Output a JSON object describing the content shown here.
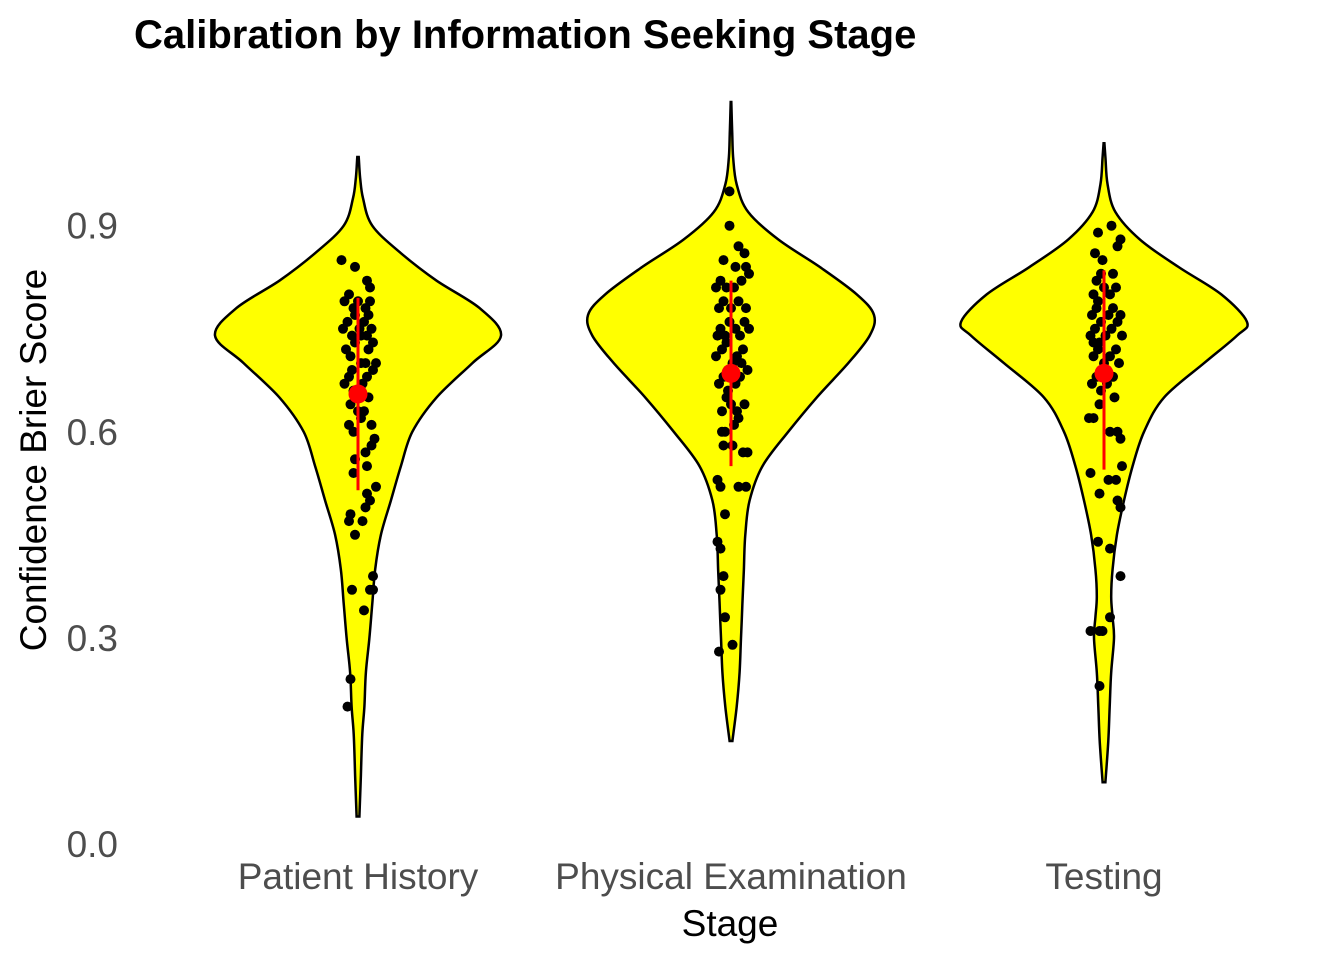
{
  "chart_data": {
    "type": "violin",
    "title": "Calibration by Information Seeking Stage",
    "xlabel": "Stage",
    "ylabel": "Confidence Brier Score",
    "ylim": [
      0,
      1.07
    ],
    "yticks": [
      0,
      0.3,
      0.6,
      0.9
    ],
    "ytick_labels": [
      "0.0",
      "0.3",
      "0.6",
      "0.9"
    ],
    "categories": [
      "Patient History",
      "Physical Examination",
      "Testing"
    ],
    "grid": false,
    "legend": "none",
    "colors": {
      "violin_fill": "#ffff00",
      "violin_outline": "#000000",
      "point": "#000000",
      "summary": "#ff0000"
    },
    "groups": [
      {
        "name": "Patient History",
        "mean": 0.655,
        "sd_range": [
          0.515,
          0.795
        ],
        "violin_range": [
          0.04,
          1.0
        ],
        "density": [
          [
            0.04,
            0.01
          ],
          [
            0.1,
            0.02
          ],
          [
            0.16,
            0.03
          ],
          [
            0.2,
            0.045
          ],
          [
            0.25,
            0.055
          ],
          [
            0.3,
            0.08
          ],
          [
            0.35,
            0.1
          ],
          [
            0.4,
            0.12
          ],
          [
            0.45,
            0.16
          ],
          [
            0.5,
            0.23
          ],
          [
            0.55,
            0.3
          ],
          [
            0.6,
            0.38
          ],
          [
            0.65,
            0.55
          ],
          [
            0.7,
            0.8
          ],
          [
            0.74,
            1.0
          ],
          [
            0.78,
            0.85
          ],
          [
            0.82,
            0.55
          ],
          [
            0.86,
            0.3
          ],
          [
            0.9,
            0.1
          ],
          [
            0.94,
            0.035
          ],
          [
            0.97,
            0.015
          ],
          [
            1.0,
            0.005
          ]
        ],
        "points": [
          [
            -0.07,
            0.2
          ],
          [
            -0.05,
            0.24
          ],
          [
            -0.04,
            0.37
          ],
          [
            0.04,
            0.34
          ],
          [
            0.08,
            0.37
          ],
          [
            0.1,
            0.39
          ],
          [
            0.1,
            0.37
          ],
          [
            -0.06,
            0.47
          ],
          [
            -0.05,
            0.48
          ],
          [
            -0.02,
            0.45
          ],
          [
            0.03,
            0.47
          ],
          [
            0.05,
            0.49
          ],
          [
            0.06,
            0.51
          ],
          [
            0.08,
            0.5
          ],
          [
            0.12,
            0.52
          ],
          [
            -0.03,
            0.54
          ],
          [
            -0.02,
            0.56
          ],
          [
            0.05,
            0.57
          ],
          [
            0.06,
            0.55
          ],
          [
            0.09,
            0.58
          ],
          [
            0.11,
            0.59
          ],
          [
            -0.06,
            0.61
          ],
          [
            -0.03,
            0.6
          ],
          [
            0.02,
            0.62
          ],
          [
            0.04,
            0.63
          ],
          [
            0.09,
            0.61
          ],
          [
            -0.09,
            0.67
          ],
          [
            -0.06,
            0.68
          ],
          [
            -0.03,
            0.66
          ],
          [
            -0.01,
            0.65
          ],
          [
            0.03,
            0.67
          ],
          [
            0.06,
            0.68
          ],
          [
            0.1,
            0.69
          ],
          [
            -0.08,
            0.72
          ],
          [
            -0.05,
            0.71
          ],
          [
            -0.02,
            0.73
          ],
          [
            0.02,
            0.74
          ],
          [
            0.05,
            0.7
          ],
          [
            0.07,
            0.72
          ],
          [
            0.1,
            0.73
          ],
          [
            0.12,
            0.7
          ],
          [
            -0.1,
            0.75
          ],
          [
            -0.07,
            0.76
          ],
          [
            -0.04,
            0.74
          ],
          [
            -0.02,
            0.77
          ],
          [
            0.01,
            0.75
          ],
          [
            0.04,
            0.76
          ],
          [
            0.06,
            0.74
          ],
          [
            0.09,
            0.75
          ],
          [
            -0.09,
            0.79
          ],
          [
            -0.06,
            0.8
          ],
          [
            -0.03,
            0.78
          ],
          [
            0.0,
            0.79
          ],
          [
            0.05,
            0.78
          ],
          [
            0.07,
            0.77
          ],
          [
            0.08,
            0.79
          ],
          [
            -0.11,
            0.85
          ],
          [
            -0.02,
            0.84
          ],
          [
            0.06,
            0.82
          ],
          [
            0.08,
            0.81
          ],
          [
            -0.05,
            0.64
          ],
          [
            0.0,
            0.63
          ],
          [
            0.07,
            0.65
          ],
          [
            -0.04,
            0.69
          ],
          [
            0.02,
            0.7
          ]
        ]
      },
      {
        "name": "Physical Examination",
        "mean": 0.685,
        "sd_range": [
          0.55,
          0.82
        ],
        "violin_range": [
          0.15,
          1.08
        ],
        "density": [
          [
            0.15,
            0.01
          ],
          [
            0.2,
            0.04
          ],
          [
            0.25,
            0.06
          ],
          [
            0.3,
            0.07
          ],
          [
            0.35,
            0.08
          ],
          [
            0.4,
            0.09
          ],
          [
            0.45,
            0.1
          ],
          [
            0.5,
            0.13
          ],
          [
            0.55,
            0.22
          ],
          [
            0.6,
            0.4
          ],
          [
            0.65,
            0.6
          ],
          [
            0.7,
            0.82
          ],
          [
            0.74,
            0.97
          ],
          [
            0.77,
            1.0
          ],
          [
            0.8,
            0.88
          ],
          [
            0.84,
            0.62
          ],
          [
            0.88,
            0.33
          ],
          [
            0.92,
            0.12
          ],
          [
            0.96,
            0.04
          ],
          [
            1.0,
            0.015
          ],
          [
            1.04,
            0.008
          ],
          [
            1.08,
            0.002
          ]
        ],
        "points": [
          [
            -0.08,
            0.28
          ],
          [
            0.01,
            0.29
          ],
          [
            -0.04,
            0.33
          ],
          [
            -0.07,
            0.37
          ],
          [
            -0.05,
            0.39
          ],
          [
            -0.09,
            0.44
          ],
          [
            -0.07,
            0.43
          ],
          [
            -0.04,
            0.48
          ],
          [
            -0.09,
            0.53
          ],
          [
            -0.07,
            0.52
          ],
          [
            0.05,
            0.52
          ],
          [
            0.1,
            0.52
          ],
          [
            0.08,
            0.57
          ],
          [
            0.11,
            0.57
          ],
          [
            -0.05,
            0.58
          ],
          [
            -0.04,
            0.6
          ],
          [
            0.02,
            0.61
          ],
          [
            0.05,
            0.62
          ],
          [
            -0.06,
            0.63
          ],
          [
            -0.03,
            0.65
          ],
          [
            0.0,
            0.64
          ],
          [
            0.04,
            0.63
          ],
          [
            0.09,
            0.64
          ],
          [
            -0.08,
            0.67
          ],
          [
            -0.05,
            0.68
          ],
          [
            -0.02,
            0.66
          ],
          [
            0.03,
            0.67
          ],
          [
            0.06,
            0.68
          ],
          [
            0.11,
            0.69
          ],
          [
            -0.1,
            0.71
          ],
          [
            -0.06,
            0.72
          ],
          [
            -0.03,
            0.73
          ],
          [
            0.01,
            0.7
          ],
          [
            0.04,
            0.71
          ],
          [
            0.08,
            0.72
          ],
          [
            -0.09,
            0.74
          ],
          [
            -0.07,
            0.75
          ],
          [
            -0.04,
            0.74
          ],
          [
            -0.01,
            0.76
          ],
          [
            0.03,
            0.75
          ],
          [
            0.06,
            0.74
          ],
          [
            0.09,
            0.76
          ],
          [
            0.12,
            0.75
          ],
          [
            -0.08,
            0.78
          ],
          [
            -0.05,
            0.79
          ],
          [
            0.0,
            0.78
          ],
          [
            0.05,
            0.79
          ],
          [
            0.1,
            0.78
          ],
          [
            -0.1,
            0.81
          ],
          [
            -0.07,
            0.82
          ],
          [
            -0.03,
            0.81
          ],
          [
            0.02,
            0.81
          ],
          [
            0.07,
            0.82
          ],
          [
            0.12,
            0.83
          ],
          [
            -0.05,
            0.85
          ],
          [
            0.03,
            0.84
          ],
          [
            0.1,
            0.84
          ],
          [
            -0.01,
            0.9
          ],
          [
            0.05,
            0.87
          ],
          [
            0.09,
            0.86
          ],
          [
            -0.01,
            0.95
          ],
          [
            -0.02,
            0.69
          ],
          [
            0.07,
            0.7
          ],
          [
            -0.06,
            0.6
          ],
          [
            0.01,
            0.58
          ]
        ]
      },
      {
        "name": "Testing",
        "mean": 0.685,
        "sd_range": [
          0.545,
          0.835
        ],
        "violin_range": [
          0.09,
          1.02
        ],
        "density": [
          [
            0.09,
            0.01
          ],
          [
            0.15,
            0.03
          ],
          [
            0.2,
            0.04
          ],
          [
            0.25,
            0.05
          ],
          [
            0.3,
            0.07
          ],
          [
            0.33,
            0.06
          ],
          [
            0.36,
            0.05
          ],
          [
            0.4,
            0.06
          ],
          [
            0.45,
            0.09
          ],
          [
            0.5,
            0.14
          ],
          [
            0.55,
            0.2
          ],
          [
            0.6,
            0.28
          ],
          [
            0.65,
            0.42
          ],
          [
            0.7,
            0.7
          ],
          [
            0.74,
            0.93
          ],
          [
            0.76,
            1.0
          ],
          [
            0.8,
            0.82
          ],
          [
            0.84,
            0.52
          ],
          [
            0.88,
            0.25
          ],
          [
            0.92,
            0.08
          ],
          [
            0.96,
            0.025
          ],
          [
            1.0,
            0.01
          ],
          [
            1.02,
            0.003
          ]
        ],
        "points": [
          [
            -0.03,
            0.23
          ],
          [
            -0.09,
            0.31
          ],
          [
            -0.03,
            0.31
          ],
          [
            -0.01,
            0.31
          ],
          [
            0.04,
            0.33
          ],
          [
            0.11,
            0.39
          ],
          [
            0.04,
            0.43
          ],
          [
            -0.04,
            0.44
          ],
          [
            -0.03,
            0.51
          ],
          [
            0.09,
            0.5
          ],
          [
            0.11,
            0.49
          ],
          [
            -0.09,
            0.54
          ],
          [
            0.03,
            0.53
          ],
          [
            0.08,
            0.53
          ],
          [
            0.12,
            0.55
          ],
          [
            -0.1,
            0.62
          ],
          [
            -0.07,
            0.62
          ],
          [
            0.04,
            0.6
          ],
          [
            0.09,
            0.6
          ],
          [
            0.11,
            0.59
          ],
          [
            -0.08,
            0.67
          ],
          [
            -0.05,
            0.68
          ],
          [
            -0.02,
            0.66
          ],
          [
            0.02,
            0.67
          ],
          [
            0.06,
            0.68
          ],
          [
            0.1,
            0.7
          ],
          [
            -0.07,
            0.71
          ],
          [
            -0.04,
            0.72
          ],
          [
            0.0,
            0.7
          ],
          [
            0.04,
            0.71
          ],
          [
            0.08,
            0.72
          ],
          [
            -0.09,
            0.74
          ],
          [
            -0.06,
            0.75
          ],
          [
            -0.03,
            0.73
          ],
          [
            0.01,
            0.74
          ],
          [
            0.05,
            0.75
          ],
          [
            0.09,
            0.76
          ],
          [
            0.12,
            0.74
          ],
          [
            -0.08,
            0.77
          ],
          [
            -0.05,
            0.78
          ],
          [
            -0.02,
            0.76
          ],
          [
            0.03,
            0.77
          ],
          [
            0.06,
            0.78
          ],
          [
            0.11,
            0.77
          ],
          [
            -0.07,
            0.8
          ],
          [
            -0.04,
            0.79
          ],
          [
            0.0,
            0.81
          ],
          [
            0.04,
            0.8
          ],
          [
            0.08,
            0.81
          ],
          [
            -0.05,
            0.82
          ],
          [
            -0.02,
            0.83
          ],
          [
            0.06,
            0.83
          ],
          [
            -0.06,
            0.86
          ],
          [
            -0.01,
            0.85
          ],
          [
            0.09,
            0.87
          ],
          [
            0.11,
            0.88
          ],
          [
            -0.04,
            0.89
          ],
          [
            0.05,
            0.9
          ],
          [
            -0.07,
            0.73
          ],
          [
            0.02,
            0.69
          ],
          [
            0.07,
            0.65
          ],
          [
            -0.03,
            0.64
          ]
        ]
      }
    ]
  }
}
